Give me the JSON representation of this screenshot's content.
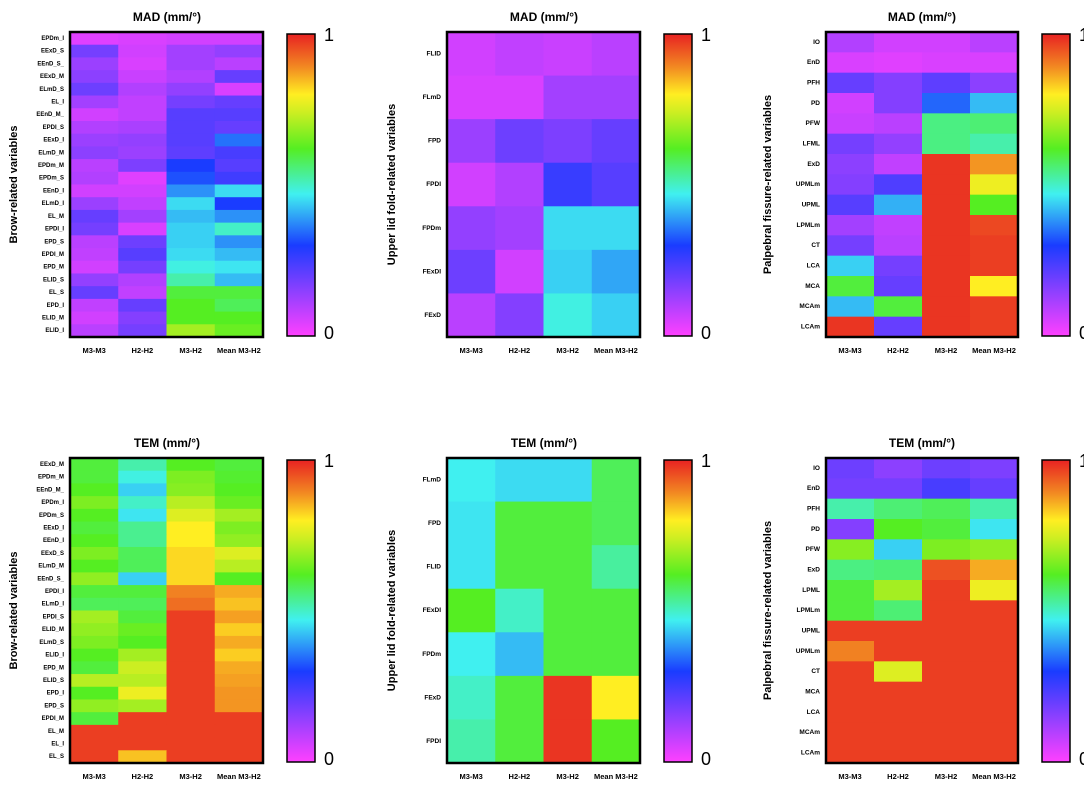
{
  "chart_data": [
    {
      "type": "heatmap",
      "title": "MAD (mm/°)",
      "ylabel": "Brow-related variables",
      "columns": [
        "M3-M3",
        "H2-H2",
        "M3-H2",
        "Mean M3-H2"
      ],
      "rows": [
        "EPDm_I",
        "EExD_S",
        "EEnD_S_",
        "EExD_M",
        "ELmD_S",
        "EL_I",
        "EEnD_M_",
        "EPDI_S",
        "EExD_I",
        "ELmD_M",
        "EPDm_M",
        "EPDm_S",
        "EEnD_I",
        "ELmD_I",
        "EL_M",
        "EPDI_I",
        "EPD_S",
        "EPDI_M",
        "EPD_M",
        "ELID_S",
        "EL_S",
        "EPD_I",
        "ELID_M",
        "ELID_I"
      ],
      "values": [
        [
          0.04,
          0.05,
          0.06,
          0.06
        ],
        [
          0.18,
          0.06,
          0.12,
          0.14
        ],
        [
          0.13,
          0.05,
          0.12,
          0.09
        ],
        [
          0.15,
          0.07,
          0.1,
          0.2
        ],
        [
          0.19,
          0.1,
          0.14,
          0.05
        ],
        [
          0.12,
          0.08,
          0.18,
          0.2
        ],
        [
          0.06,
          0.08,
          0.22,
          0.22
        ],
        [
          0.1,
          0.11,
          0.22,
          0.2
        ],
        [
          0.13,
          0.14,
          0.22,
          0.35
        ],
        [
          0.15,
          0.13,
          0.21,
          0.24
        ],
        [
          0.09,
          0.17,
          0.3,
          0.22
        ],
        [
          0.1,
          0.04,
          0.32,
          0.25
        ],
        [
          0.06,
          0.06,
          0.38,
          0.45
        ],
        [
          0.13,
          0.08,
          0.45,
          0.3
        ],
        [
          0.2,
          0.12,
          0.42,
          0.38
        ],
        [
          0.18,
          0.05,
          0.44,
          0.5
        ],
        [
          0.09,
          0.19,
          0.44,
          0.38
        ],
        [
          0.08,
          0.22,
          0.45,
          0.42
        ],
        [
          0.06,
          0.18,
          0.48,
          0.46
        ],
        [
          0.14,
          0.1,
          0.52,
          0.42
        ],
        [
          0.2,
          0.08,
          0.6,
          0.6
        ],
        [
          0.08,
          0.2,
          0.62,
          0.58
        ],
        [
          0.06,
          0.16,
          0.62,
          0.62
        ],
        [
          0.09,
          0.18,
          0.7,
          0.64
        ]
      ],
      "colorbar": {
        "min_label": "0",
        "max_label": "1",
        "range": [
          0,
          1
        ]
      }
    },
    {
      "type": "heatmap",
      "title": "MAD (mm/°)",
      "ylabel": "Upper lid fold-related variables",
      "columns": [
        "M3-M3",
        "H2-H2",
        "M3-H2",
        "Mean M3-H2"
      ],
      "rows": [
        "FLID",
        "FLmD",
        "FPD",
        "FPDI",
        "FPDm",
        "FExDI",
        "FExD"
      ],
      "values": [
        [
          0.06,
          0.08,
          0.07,
          0.09
        ],
        [
          0.05,
          0.05,
          0.12,
          0.12
        ],
        [
          0.13,
          0.19,
          0.17,
          0.2
        ],
        [
          0.06,
          0.1,
          0.26,
          0.22
        ],
        [
          0.14,
          0.12,
          0.45,
          0.45
        ],
        [
          0.19,
          0.06,
          0.44,
          0.4
        ],
        [
          0.09,
          0.16,
          0.48,
          0.44
        ]
      ],
      "colorbar": {
        "min_label": "0",
        "max_label": "1",
        "range": [
          0,
          1
        ]
      }
    },
    {
      "type": "heatmap",
      "title": "MAD (mm/°)",
      "ylabel": "Palpebral fissure-related variables",
      "columns": [
        "M3-M3",
        "H2-H2",
        "M3-H2",
        "Mean M3-H2"
      ],
      "rows": [
        "IO",
        "EnD",
        "PFH",
        "PD",
        "PFW",
        "LFML",
        "ExD",
        "UPMLm",
        "UPML",
        "LPMLm",
        "CT",
        "LCA",
        "MCA",
        "MCAm",
        "LCAm"
      ],
      "values": [
        [
          0.1,
          0.06,
          0.06,
          0.09
        ],
        [
          0.05,
          0.04,
          0.05,
          0.05
        ],
        [
          0.2,
          0.16,
          0.21,
          0.15
        ],
        [
          0.06,
          0.16,
          0.34,
          0.42
        ],
        [
          0.07,
          0.09,
          0.55,
          0.56
        ],
        [
          0.18,
          0.14,
          0.55,
          0.52
        ],
        [
          0.15,
          0.08,
          0.98,
          0.88
        ],
        [
          0.16,
          0.23,
          0.98,
          0.78
        ],
        [
          0.22,
          0.41,
          0.98,
          0.62
        ],
        [
          0.12,
          0.08,
          0.98,
          0.96
        ],
        [
          0.18,
          0.09,
          0.98,
          0.97
        ],
        [
          0.44,
          0.18,
          0.98,
          0.97
        ],
        [
          0.6,
          0.2,
          0.98,
          0.8
        ],
        [
          0.42,
          0.6,
          0.98,
          0.97
        ],
        [
          0.98,
          0.2,
          0.98,
          0.97
        ]
      ],
      "colorbar": {
        "min_label": "0",
        "max_label": "1",
        "range": [
          0,
          1
        ]
      }
    },
    {
      "type": "heatmap",
      "title": "TEM (mm/°)",
      "ylabel": "Brow-related variables",
      "columns": [
        "M3-M3",
        "H2-H2",
        "M3-H2",
        "Mean M3-H2"
      ],
      "rows": [
        "EExD_M",
        "EPDm_M",
        "EEnD_M_",
        "EPDm_I",
        "EPDm_S",
        "EExD_I",
        "EEnD_I",
        "EExD_S",
        "ELmD_M",
        "EEnD_S_",
        "EPDI_I",
        "ELmD_I",
        "EPDI_S",
        "ELID_M",
        "ELmD_S",
        "ELID_I",
        "EPD_M",
        "ELID_S",
        "EPD_I",
        "EPD_S",
        "EPDI_M",
        "EL_M",
        "EL_I",
        "EL_S"
      ],
      "values": [
        [
          0.6,
          0.52,
          0.62,
          0.6
        ],
        [
          0.6,
          0.48,
          0.66,
          0.61
        ],
        [
          0.62,
          0.44,
          0.67,
          0.62
        ],
        [
          0.66,
          0.5,
          0.72,
          0.64
        ],
        [
          0.62,
          0.46,
          0.76,
          0.7
        ],
        [
          0.6,
          0.54,
          0.8,
          0.66
        ],
        [
          0.62,
          0.54,
          0.8,
          0.68
        ],
        [
          0.66,
          0.58,
          0.82,
          0.76
        ],
        [
          0.62,
          0.58,
          0.82,
          0.72
        ],
        [
          0.68,
          0.44,
          0.82,
          0.62
        ],
        [
          0.6,
          0.6,
          0.9,
          0.86
        ],
        [
          0.58,
          0.58,
          0.92,
          0.84
        ],
        [
          0.7,
          0.6,
          0.97,
          0.87
        ],
        [
          0.68,
          0.64,
          0.97,
          0.83
        ],
        [
          0.66,
          0.62,
          0.97,
          0.86
        ],
        [
          0.62,
          0.7,
          0.97,
          0.83
        ],
        [
          0.6,
          0.74,
          0.97,
          0.86
        ],
        [
          0.72,
          0.72,
          0.97,
          0.87
        ],
        [
          0.62,
          0.78,
          0.97,
          0.88
        ],
        [
          0.68,
          0.7,
          0.97,
          0.88
        ],
        [
          0.6,
          0.97,
          0.97,
          0.97
        ],
        [
          0.97,
          0.97,
          0.97,
          0.97
        ],
        [
          0.97,
          0.97,
          0.97,
          0.97
        ],
        [
          0.97,
          0.84,
          0.97,
          0.97
        ]
      ],
      "colorbar": {
        "min_label": "0",
        "max_label": "1",
        "range": [
          0,
          1
        ]
      }
    },
    {
      "type": "heatmap",
      "title": "TEM (mm/°)",
      "ylabel": "Upper lid fold-related variables",
      "columns": [
        "M3-M3",
        "H2-H2",
        "M3-H2",
        "Mean M3-H2"
      ],
      "rows": [
        "FLmD",
        "FPD",
        "FLID",
        "FExDI",
        "FPDm",
        "FExD",
        "FPDI"
      ],
      "values": [
        [
          0.47,
          0.45,
          0.45,
          0.58
        ],
        [
          0.46,
          0.6,
          0.6,
          0.58
        ],
        [
          0.46,
          0.6,
          0.6,
          0.53
        ],
        [
          0.62,
          0.5,
          0.6,
          0.6
        ],
        [
          0.47,
          0.42,
          0.6,
          0.6
        ],
        [
          0.5,
          0.6,
          0.98,
          0.8
        ],
        [
          0.52,
          0.6,
          0.98,
          0.62
        ]
      ],
      "colorbar": {
        "min_label": "0",
        "max_label": "1",
        "range": [
          0,
          1
        ]
      }
    },
    {
      "type": "heatmap",
      "title": "TEM (mm/°)",
      "ylabel": "Palpebral fissure-related variables",
      "columns": [
        "M3-M3",
        "H2-H2",
        "M3-H2",
        "Mean M3-H2"
      ],
      "rows": [
        "IO",
        "EnD",
        "PFH",
        "PD",
        "PFW",
        "ExD",
        "LPML",
        "LPMLm",
        "UPML",
        "UPMLm",
        "CT",
        "MCA",
        "LCA",
        "MCAm",
        "LCAm"
      ],
      "values": [
        [
          0.19,
          0.15,
          0.19,
          0.17
        ],
        [
          0.18,
          0.18,
          0.24,
          0.2
        ],
        [
          0.52,
          0.56,
          0.58,
          0.52
        ],
        [
          0.16,
          0.62,
          0.6,
          0.46
        ],
        [
          0.67,
          0.44,
          0.66,
          0.68
        ],
        [
          0.55,
          0.56,
          0.95,
          0.86
        ],
        [
          0.6,
          0.7,
          0.97,
          0.78
        ],
        [
          0.6,
          0.56,
          0.97,
          0.97
        ],
        [
          0.97,
          0.97,
          0.97,
          0.97
        ],
        [
          0.9,
          0.97,
          0.97,
          0.97
        ],
        [
          0.97,
          0.76,
          0.97,
          0.97
        ],
        [
          0.97,
          0.97,
          0.97,
          0.97
        ],
        [
          0.97,
          0.97,
          0.97,
          0.97
        ],
        [
          0.97,
          0.97,
          0.97,
          0.97
        ],
        [
          0.97,
          0.97,
          0.97,
          0.97
        ]
      ],
      "colorbar": {
        "min_label": "0",
        "max_label": "1",
        "range": [
          0,
          1
        ]
      }
    }
  ]
}
